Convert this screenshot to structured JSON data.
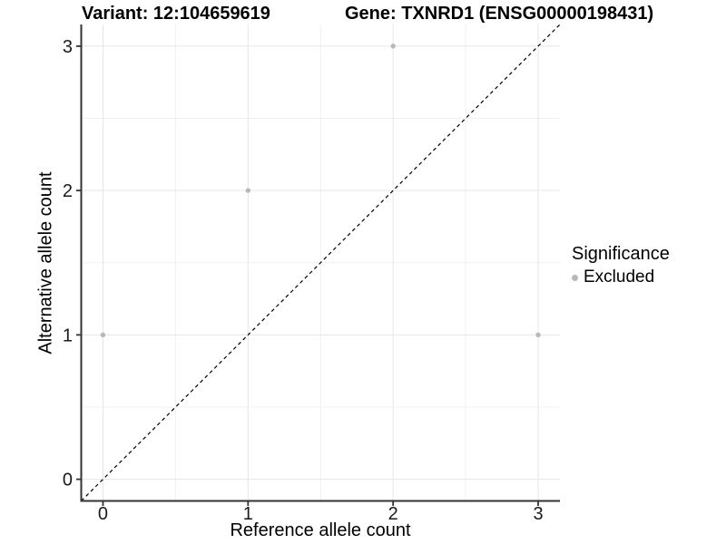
{
  "titles": {
    "variant": "Variant: 12:104659619",
    "gene": "Gene: TXNRD1 (ENSG00000198431)"
  },
  "legend": {
    "title": "Significance",
    "items": [
      {
        "label": "Excluded",
        "color": "#b8b8b8"
      }
    ]
  },
  "colors": {
    "background": "#ffffff",
    "axis_line": "#333333",
    "tick_mark": "#333333",
    "tick_label": "#1a1a1a",
    "major_grid": "#e6e6e6",
    "minor_grid": "#f0f0f0",
    "point": "#b8b8b8",
    "identity_line": "#000000"
  },
  "chart_data": {
    "type": "scatter",
    "title_left": "Variant: 12:104659619",
    "title_right": "Gene: TXNRD1 (ENSG00000198431)",
    "xlabel": "Reference allele count",
    "ylabel": "Alternative allele count",
    "xlim": [
      -0.15,
      3.15
    ],
    "ylim": [
      -0.15,
      3.15
    ],
    "x_ticks": [
      0,
      1,
      2,
      3
    ],
    "y_ticks": [
      0,
      1,
      2,
      3
    ],
    "minor_breaks": [
      0.5,
      1.5,
      2.5
    ],
    "grid": "on",
    "legend_position": "right",
    "series": [
      {
        "name": "Excluded",
        "color": "#b8b8b8",
        "points": [
          {
            "x": 0,
            "y": 1
          },
          {
            "x": 1,
            "y": 2
          },
          {
            "x": 2,
            "y": 3
          },
          {
            "x": 3,
            "y": 1
          }
        ]
      }
    ],
    "identity_line": {
      "style": "dashed",
      "color": "#000000",
      "from": [
        -0.15,
        -0.15
      ],
      "to": [
        3.15,
        3.15
      ]
    }
  }
}
